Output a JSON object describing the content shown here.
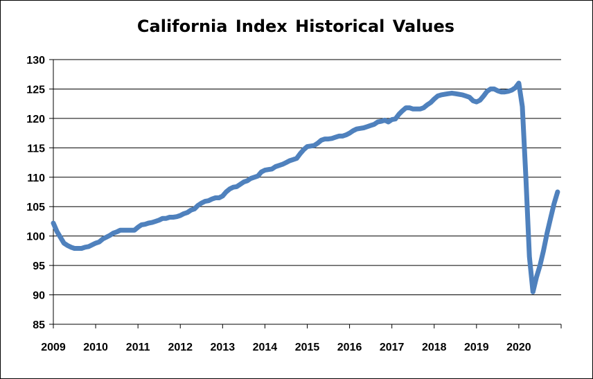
{
  "chart_data": {
    "type": "line",
    "title": "California Index Historical Values",
    "xlabel": "",
    "ylabel": "",
    "xlim": [
      2009,
      2021
    ],
    "ylim": [
      85,
      130
    ],
    "yticks": [
      85,
      90,
      95,
      100,
      105,
      110,
      115,
      120,
      125,
      130
    ],
    "xticks": [
      "2009",
      "2010",
      "2011",
      "2012",
      "2013",
      "2014",
      "2015",
      "2016",
      "2017",
      "2018",
      "2019",
      "2020"
    ],
    "grid": "horizontal",
    "legend": "none",
    "line_color": "#4F81BD",
    "series": [
      {
        "x": [
          2009.0,
          2009.083,
          2009.167,
          2009.25,
          2009.333,
          2009.417,
          2009.5,
          2009.583,
          2009.667,
          2009.75,
          2009.833,
          2009.917,
          2010.0,
          2010.083,
          2010.167,
          2010.25,
          2010.333,
          2010.417,
          2010.5,
          2010.583,
          2010.667,
          2010.75,
          2010.833,
          2010.917,
          2011.0,
          2011.083,
          2011.167,
          2011.25,
          2011.333,
          2011.417,
          2011.5,
          2011.583,
          2011.667,
          2011.75,
          2011.833,
          2011.917,
          2012.0,
          2012.083,
          2012.167,
          2012.25,
          2012.333,
          2012.417,
          2012.5,
          2012.583,
          2012.667,
          2012.75,
          2012.833,
          2012.917,
          2013.0,
          2013.083,
          2013.167,
          2013.25,
          2013.333,
          2013.417,
          2013.5,
          2013.583,
          2013.667,
          2013.75,
          2013.833,
          2013.917,
          2014.0,
          2014.083,
          2014.167,
          2014.25,
          2014.333,
          2014.417,
          2014.5,
          2014.583,
          2014.667,
          2014.75,
          2014.833,
          2014.917,
          2015.0,
          2015.083,
          2015.167,
          2015.25,
          2015.333,
          2015.417,
          2015.5,
          2015.583,
          2015.667,
          2015.75,
          2015.833,
          2015.917,
          2016.0,
          2016.083,
          2016.167,
          2016.25,
          2016.333,
          2016.417,
          2016.5,
          2016.583,
          2016.667,
          2016.75,
          2016.833,
          2016.917,
          2017.0,
          2017.083,
          2017.167,
          2017.25,
          2017.333,
          2017.417,
          2017.5,
          2017.583,
          2017.667,
          2017.75,
          2017.833,
          2017.917,
          2018.0,
          2018.083,
          2018.167,
          2018.25,
          2018.333,
          2018.417,
          2018.5,
          2018.583,
          2018.667,
          2018.75,
          2018.833,
          2018.917,
          2019.0,
          2019.083,
          2019.167,
          2019.25,
          2019.333,
          2019.417,
          2019.5,
          2019.583,
          2019.667,
          2019.75,
          2019.833,
          2019.917,
          2020.0,
          2020.083,
          2020.167,
          2020.25,
          2020.333,
          2020.417,
          2020.5,
          2020.583,
          2020.667,
          2020.75,
          2020.833,
          2020.917
        ],
        "values": [
          102.2,
          100.8,
          99.8,
          98.8,
          98.4,
          98.1,
          97.9,
          97.9,
          97.9,
          98.1,
          98.2,
          98.5,
          98.8,
          99.0,
          99.5,
          99.8,
          100.1,
          100.5,
          100.7,
          101.0,
          101.0,
          101.0,
          101.0,
          101.0,
          101.5,
          101.9,
          102.0,
          102.2,
          102.3,
          102.5,
          102.7,
          103.0,
          103.0,
          103.2,
          103.2,
          103.3,
          103.5,
          103.8,
          104.0,
          104.4,
          104.6,
          105.2,
          105.6,
          105.9,
          106.0,
          106.3,
          106.5,
          106.5,
          106.8,
          107.5,
          108.0,
          108.3,
          108.4,
          108.8,
          109.2,
          109.4,
          109.8,
          110.0,
          110.2,
          110.9,
          111.2,
          111.3,
          111.4,
          111.8,
          112.0,
          112.2,
          112.5,
          112.8,
          113.0,
          113.2,
          114.0,
          114.7,
          115.2,
          115.3,
          115.4,
          115.8,
          116.3,
          116.5,
          116.5,
          116.6,
          116.8,
          117.0,
          117.0,
          117.2,
          117.5,
          117.9,
          118.2,
          118.3,
          118.4,
          118.6,
          118.8,
          119.0,
          119.4,
          119.5,
          119.7,
          119.4,
          119.8,
          119.9,
          120.7,
          121.3,
          121.8,
          121.8,
          121.6,
          121.6,
          121.6,
          121.8,
          122.3,
          122.7,
          123.3,
          123.8,
          124.0,
          124.1,
          124.2,
          124.3,
          124.2,
          124.1,
          124.0,
          123.8,
          123.6,
          123.0,
          122.8,
          123.1,
          123.8,
          124.6,
          125.0,
          125.0,
          124.7,
          124.5,
          124.5,
          124.6,
          124.8,
          125.2,
          126.0,
          122.0,
          110.0,
          96.5,
          90.5,
          93.0,
          95.0,
          97.5,
          100.5,
          103.0,
          105.5,
          107.5
        ]
      }
    ]
  }
}
